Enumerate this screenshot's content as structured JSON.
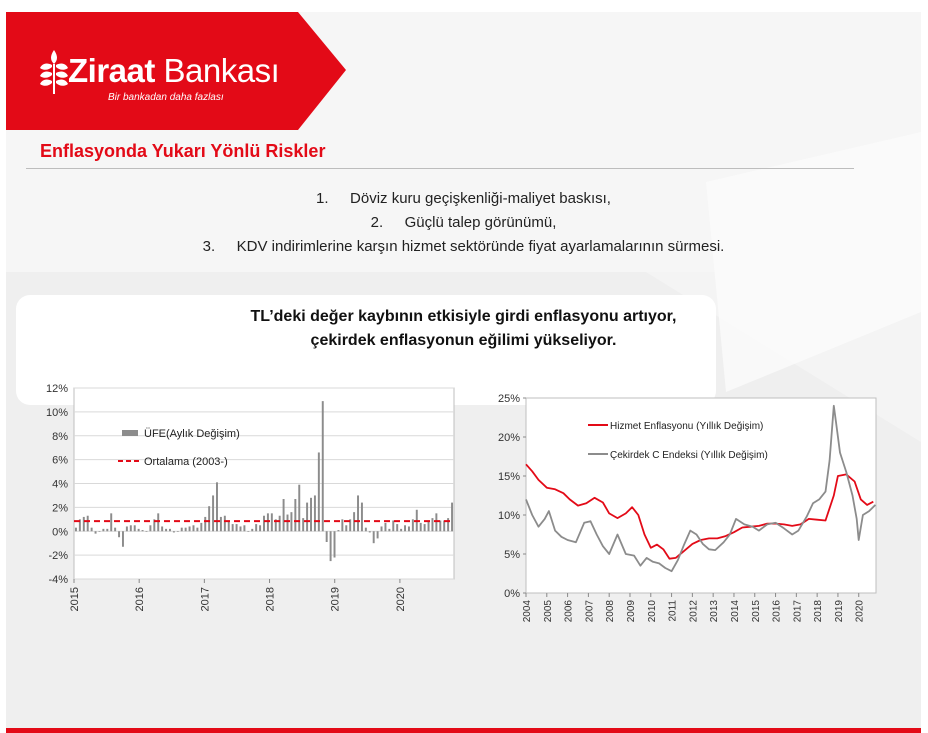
{
  "brand": {
    "name_bold": "Ziraat",
    "name_rest": " Bankası",
    "tagline": "Bir bankadan daha fazlası",
    "color": "#e30a17",
    "logo_icon": "wheat-logo-icon"
  },
  "title": "Enflasyonda Yukarı Yönlü Riskler",
  "risks": [
    {
      "num": "1.",
      "text": "Döviz kuru geçişkenliği-maliyet baskısı,"
    },
    {
      "num": "2.",
      "text": "Güçlü talep görünümü,"
    },
    {
      "num": "3.",
      "text": "KDV indirimlerine karşın hizmet sektöründe fiyat ayarlamalarının sürmesi."
    }
  ],
  "subtitle": {
    "line1": "TL’deki değer kaybının etkisiyle girdi enflasyonu artıyor,",
    "line2": "çekirdek enflasyonun eğilimi yükseliyor."
  },
  "chart_data": [
    {
      "type": "bar",
      "series": [
        {
          "name": "ÜFE(Aylık Değişim)",
          "type": "bar",
          "color": "#8c8c8c",
          "values": [
            0.3,
            1.0,
            1.2,
            1.3,
            0.3,
            -0.2,
            0.0,
            0.2,
            0.2,
            1.5,
            0.3,
            -0.5,
            -1.3,
            0.4,
            0.5,
            0.5,
            0.2,
            0.1,
            0.0,
            0.5,
            1.0,
            1.5,
            0.4,
            0.2,
            0.2,
            -0.1,
            0.0,
            0.3,
            0.3,
            0.4,
            0.5,
            0.3,
            0.7,
            1.2,
            2.1,
            3.0,
            4.1,
            1.2,
            1.3,
            0.8,
            0.6,
            0.6,
            0.4,
            0.5,
            0.0,
            0.2,
            0.6,
            0.5,
            1.3,
            1.5,
            1.5,
            1.0,
            1.3,
            2.7,
            1.4,
            1.6,
            2.7,
            3.9,
            1.1,
            2.4,
            2.8,
            3.0,
            6.6,
            10.9,
            -0.9,
            -2.5,
            -2.2,
            0.1,
            1.0,
            0.5,
            1.0,
            1.6,
            3.0,
            2.4,
            0.3,
            -0.1,
            -1.0,
            -0.6,
            0.4,
            0.7,
            0.2,
            0.9,
            0.6,
            0.2,
            0.5,
            0.4,
            1.0,
            1.8,
            0.7,
            0.6,
            0.9,
            1.1,
            1.5,
            0.9,
            0.9,
            1.1,
            2.4
          ]
        },
        {
          "name": "Ortalama (2003-)",
          "type": "line",
          "style": "dashed",
          "color": "#e30a17",
          "value": 0.85
        }
      ],
      "x_labels": [
        "2015",
        "2016",
        "2017",
        "2018",
        "2019",
        "2020"
      ],
      "x_range": [
        2015,
        2020.83
      ],
      "ylim": [
        -4,
        12
      ],
      "y_ticks": [
        "-4%",
        "-2%",
        "0%",
        "2%",
        "4%",
        "6%",
        "8%",
        "10%",
        "12%"
      ],
      "grid": true,
      "legend": "top-left"
    },
    {
      "type": "line",
      "series": [
        {
          "name": "Hizmet Enflasyonu (Yıllık Değişim)",
          "color": "#e30a17",
          "points": [
            [
              2004.0,
              16.5
            ],
            [
              2004.3,
              15.6
            ],
            [
              2004.6,
              14.5
            ],
            [
              2005.0,
              13.5
            ],
            [
              2005.4,
              13.3
            ],
            [
              2005.8,
              12.8
            ],
            [
              2006.1,
              12.0
            ],
            [
              2006.5,
              11.2
            ],
            [
              2006.9,
              11.5
            ],
            [
              2007.3,
              12.2
            ],
            [
              2007.7,
              11.6
            ],
            [
              2008.0,
              10.2
            ],
            [
              2008.4,
              9.6
            ],
            [
              2008.8,
              10.2
            ],
            [
              2009.1,
              11.0
            ],
            [
              2009.4,
              10.0
            ],
            [
              2009.7,
              7.5
            ],
            [
              2010.0,
              5.8
            ],
            [
              2010.3,
              6.2
            ],
            [
              2010.6,
              5.6
            ],
            [
              2010.9,
              4.4
            ],
            [
              2011.2,
              4.5
            ],
            [
              2011.6,
              5.4
            ],
            [
              2012.0,
              6.3
            ],
            [
              2012.4,
              6.8
            ],
            [
              2012.8,
              7.0
            ],
            [
              2013.2,
              7.0
            ],
            [
              2013.6,
              7.3
            ],
            [
              2014.0,
              7.8
            ],
            [
              2014.4,
              8.4
            ],
            [
              2014.8,
              8.5
            ],
            [
              2015.2,
              8.6
            ],
            [
              2015.6,
              8.9
            ],
            [
              2016.0,
              8.9
            ],
            [
              2016.4,
              8.8
            ],
            [
              2016.8,
              8.6
            ],
            [
              2017.2,
              8.8
            ],
            [
              2017.6,
              9.5
            ],
            [
              2018.0,
              9.4
            ],
            [
              2018.4,
              9.3
            ],
            [
              2018.8,
              12.5
            ],
            [
              2019.0,
              15.0
            ],
            [
              2019.4,
              15.2
            ],
            [
              2019.8,
              14.3
            ],
            [
              2020.1,
              12.0
            ],
            [
              2020.4,
              11.3
            ],
            [
              2020.7,
              11.7
            ]
          ]
        },
        {
          "name": "Çekirdek C Endeksi (Yıllık Değişim)",
          "color": "#8c8c8c",
          "points": [
            [
              2004.0,
              12.0
            ],
            [
              2004.3,
              10.0
            ],
            [
              2004.6,
              8.5
            ],
            [
              2004.9,
              9.5
            ],
            [
              2005.1,
              10.5
            ],
            [
              2005.4,
              8.0
            ],
            [
              2005.7,
              7.2
            ],
            [
              2006.0,
              6.8
            ],
            [
              2006.4,
              6.5
            ],
            [
              2006.8,
              9.0
            ],
            [
              2007.1,
              9.2
            ],
            [
              2007.4,
              7.5
            ],
            [
              2007.7,
              6.0
            ],
            [
              2008.0,
              5.0
            ],
            [
              2008.4,
              7.5
            ],
            [
              2008.8,
              5.0
            ],
            [
              2009.2,
              4.8
            ],
            [
              2009.5,
              3.5
            ],
            [
              2009.8,
              4.5
            ],
            [
              2010.1,
              4.0
            ],
            [
              2010.4,
              3.8
            ],
            [
              2010.7,
              3.2
            ],
            [
              2011.0,
              2.8
            ],
            [
              2011.3,
              4.2
            ],
            [
              2011.6,
              6.2
            ],
            [
              2011.9,
              8.0
            ],
            [
              2012.2,
              7.5
            ],
            [
              2012.5,
              6.3
            ],
            [
              2012.8,
              5.6
            ],
            [
              2013.1,
              5.5
            ],
            [
              2013.5,
              6.5
            ],
            [
              2013.8,
              7.5
            ],
            [
              2014.1,
              9.5
            ],
            [
              2014.5,
              8.8
            ],
            [
              2014.9,
              8.5
            ],
            [
              2015.2,
              8.0
            ],
            [
              2015.6,
              8.8
            ],
            [
              2016.0,
              9.0
            ],
            [
              2016.4,
              8.3
            ],
            [
              2016.8,
              7.5
            ],
            [
              2017.1,
              8.0
            ],
            [
              2017.5,
              9.8
            ],
            [
              2017.8,
              11.5
            ],
            [
              2018.1,
              12.0
            ],
            [
              2018.4,
              13.0
            ],
            [
              2018.6,
              17.0
            ],
            [
              2018.8,
              24.0
            ],
            [
              2018.9,
              22.0
            ],
            [
              2019.1,
              18.0
            ],
            [
              2019.4,
              15.5
            ],
            [
              2019.7,
              12.5
            ],
            [
              2019.9,
              9.5
            ],
            [
              2020.0,
              6.8
            ],
            [
              2020.2,
              10.0
            ],
            [
              2020.5,
              10.5
            ],
            [
              2020.8,
              11.3
            ]
          ]
        }
      ],
      "x_labels": [
        "2004",
        "2005",
        "2006",
        "2007",
        "2008",
        "2009",
        "2010",
        "2011",
        "2012",
        "2013",
        "2014",
        "2015",
        "2016",
        "2017",
        "2018",
        "2019",
        "2020"
      ],
      "x_range": [
        2004,
        2020.83
      ],
      "ylim": [
        0,
        25
      ],
      "y_ticks": [
        "0%",
        "5%",
        "10%",
        "15%",
        "20%",
        "25%"
      ],
      "grid": false,
      "legend": "top-left"
    }
  ]
}
